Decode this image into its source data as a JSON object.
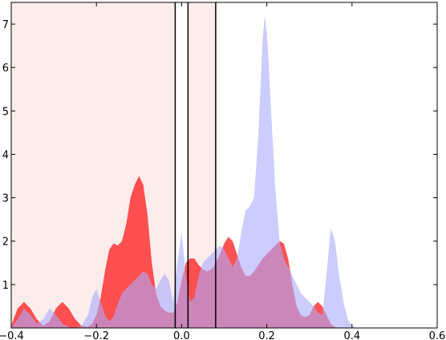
{
  "chart_data": {
    "type": "area",
    "title": "",
    "xlabel": "",
    "ylabel": "",
    "xlim": [
      -0.4,
      0.6
    ],
    "ylim": [
      0,
      7.5
    ],
    "grid": false,
    "x_ticks": [
      -0.4,
      -0.2,
      0.0,
      0.2,
      0.4,
      0.6
    ],
    "x_tick_labels": [
      "−0.4",
      "−0.2",
      "0.0",
      "0.2",
      "0.4",
      "0.6"
    ],
    "y_ticks": [
      0,
      1,
      2,
      3,
      4,
      5,
      6,
      7
    ],
    "y_tick_labels": [
      "0",
      "1",
      "2",
      "3",
      "4",
      "5",
      "6",
      "7"
    ],
    "shaded_regions": [
      {
        "x0": -0.4,
        "x1": -0.015,
        "color": "#fdecec"
      },
      {
        "x0": 0.015,
        "x1": 0.08,
        "color": "#fdecec"
      }
    ],
    "vertical_lines": [
      -0.015,
      0.015,
      0.08
    ],
    "series": [
      {
        "color": "#ff2222",
        "opacity": 0.78,
        "x": [
          -0.4,
          -0.385,
          -0.37,
          -0.355,
          -0.34,
          -0.325,
          -0.31,
          -0.295,
          -0.28,
          -0.265,
          -0.25,
          -0.235,
          -0.22,
          -0.21,
          -0.2,
          -0.19,
          -0.18,
          -0.17,
          -0.16,
          -0.15,
          -0.14,
          -0.13,
          -0.12,
          -0.11,
          -0.1,
          -0.09,
          -0.08,
          -0.07,
          -0.06,
          -0.05,
          -0.04,
          -0.03,
          -0.02,
          -0.01,
          0.0,
          0.01,
          0.02,
          0.03,
          0.04,
          0.05,
          0.06,
          0.07,
          0.08,
          0.09,
          0.1,
          0.11,
          0.12,
          0.13,
          0.14,
          0.15,
          0.16,
          0.17,
          0.18,
          0.19,
          0.2,
          0.21,
          0.22,
          0.23,
          0.24,
          0.25,
          0.26,
          0.27,
          0.28,
          0.29,
          0.3,
          0.31,
          0.32,
          0.33,
          0.34,
          0.35,
          0.36,
          0.37,
          0.38,
          0.39,
          0.4,
          0.41,
          0.42,
          0.43,
          0.44,
          0.45
        ],
        "y": [
          0.05,
          0.45,
          0.6,
          0.45,
          0.2,
          0.05,
          0.15,
          0.45,
          0.6,
          0.45,
          0.2,
          0.05,
          0.02,
          0.1,
          0.3,
          0.7,
          1.3,
          1.8,
          1.95,
          1.9,
          2.0,
          2.4,
          3.0,
          3.3,
          3.5,
          3.3,
          2.6,
          1.5,
          0.8,
          0.5,
          0.4,
          0.35,
          0.35,
          0.6,
          1.1,
          1.5,
          1.6,
          1.6,
          1.45,
          1.35,
          1.3,
          1.35,
          1.5,
          1.7,
          1.95,
          2.1,
          2.0,
          1.7,
          1.4,
          1.2,
          1.2,
          1.3,
          1.45,
          1.6,
          1.7,
          1.8,
          1.9,
          2.0,
          1.95,
          1.6,
          1.0,
          0.5,
          0.3,
          0.25,
          0.3,
          0.5,
          0.6,
          0.5,
          0.3,
          0.1,
          0.02,
          0.0,
          0.0,
          0.0,
          0.0,
          0.0,
          0.0,
          0.0,
          0.0,
          0.0
        ]
      },
      {
        "color": "#aaaaff",
        "opacity": 0.6,
        "x": [
          -0.4,
          -0.385,
          -0.37,
          -0.355,
          -0.34,
          -0.325,
          -0.31,
          -0.295,
          -0.28,
          -0.265,
          -0.25,
          -0.235,
          -0.22,
          -0.21,
          -0.2,
          -0.19,
          -0.18,
          -0.17,
          -0.16,
          -0.15,
          -0.14,
          -0.13,
          -0.12,
          -0.11,
          -0.1,
          -0.09,
          -0.08,
          -0.07,
          -0.06,
          -0.05,
          -0.04,
          -0.03,
          -0.02,
          -0.01,
          0.0,
          0.01,
          0.02,
          0.03,
          0.04,
          0.05,
          0.06,
          0.07,
          0.08,
          0.09,
          0.1,
          0.11,
          0.12,
          0.13,
          0.14,
          0.15,
          0.16,
          0.17,
          0.18,
          0.185,
          0.19,
          0.195,
          0.2,
          0.205,
          0.21,
          0.22,
          0.23,
          0.24,
          0.25,
          0.26,
          0.27,
          0.28,
          0.29,
          0.3,
          0.31,
          0.32,
          0.33,
          0.34,
          0.35,
          0.36,
          0.37,
          0.38,
          0.39,
          0.4,
          0.41,
          0.42,
          0.43,
          0.44,
          0.45,
          0.47
        ],
        "y": [
          0.0,
          0.2,
          0.45,
          0.3,
          0.1,
          0.2,
          0.45,
          0.3,
          0.1,
          0.02,
          0.0,
          0.05,
          0.3,
          0.7,
          0.9,
          0.6,
          0.3,
          0.15,
          0.25,
          0.55,
          0.8,
          0.9,
          1.0,
          1.1,
          1.2,
          1.3,
          1.25,
          1.0,
          0.9,
          1.1,
          1.25,
          1.1,
          0.6,
          1.5,
          2.2,
          1.2,
          0.6,
          0.7,
          1.2,
          1.5,
          1.6,
          1.7,
          1.8,
          1.9,
          1.8,
          1.6,
          1.4,
          1.6,
          2.2,
          2.7,
          2.8,
          3.0,
          4.4,
          5.5,
          6.6,
          7.2,
          6.8,
          6.0,
          5.0,
          3.2,
          2.0,
          1.6,
          1.4,
          1.2,
          1.0,
          0.8,
          0.7,
          0.6,
          0.5,
          0.35,
          0.3,
          1.2,
          2.3,
          2.0,
          1.2,
          0.6,
          0.2,
          0.05,
          0.0,
          0.0,
          0.0,
          0.0,
          0.0,
          0.0
        ]
      }
    ]
  }
}
